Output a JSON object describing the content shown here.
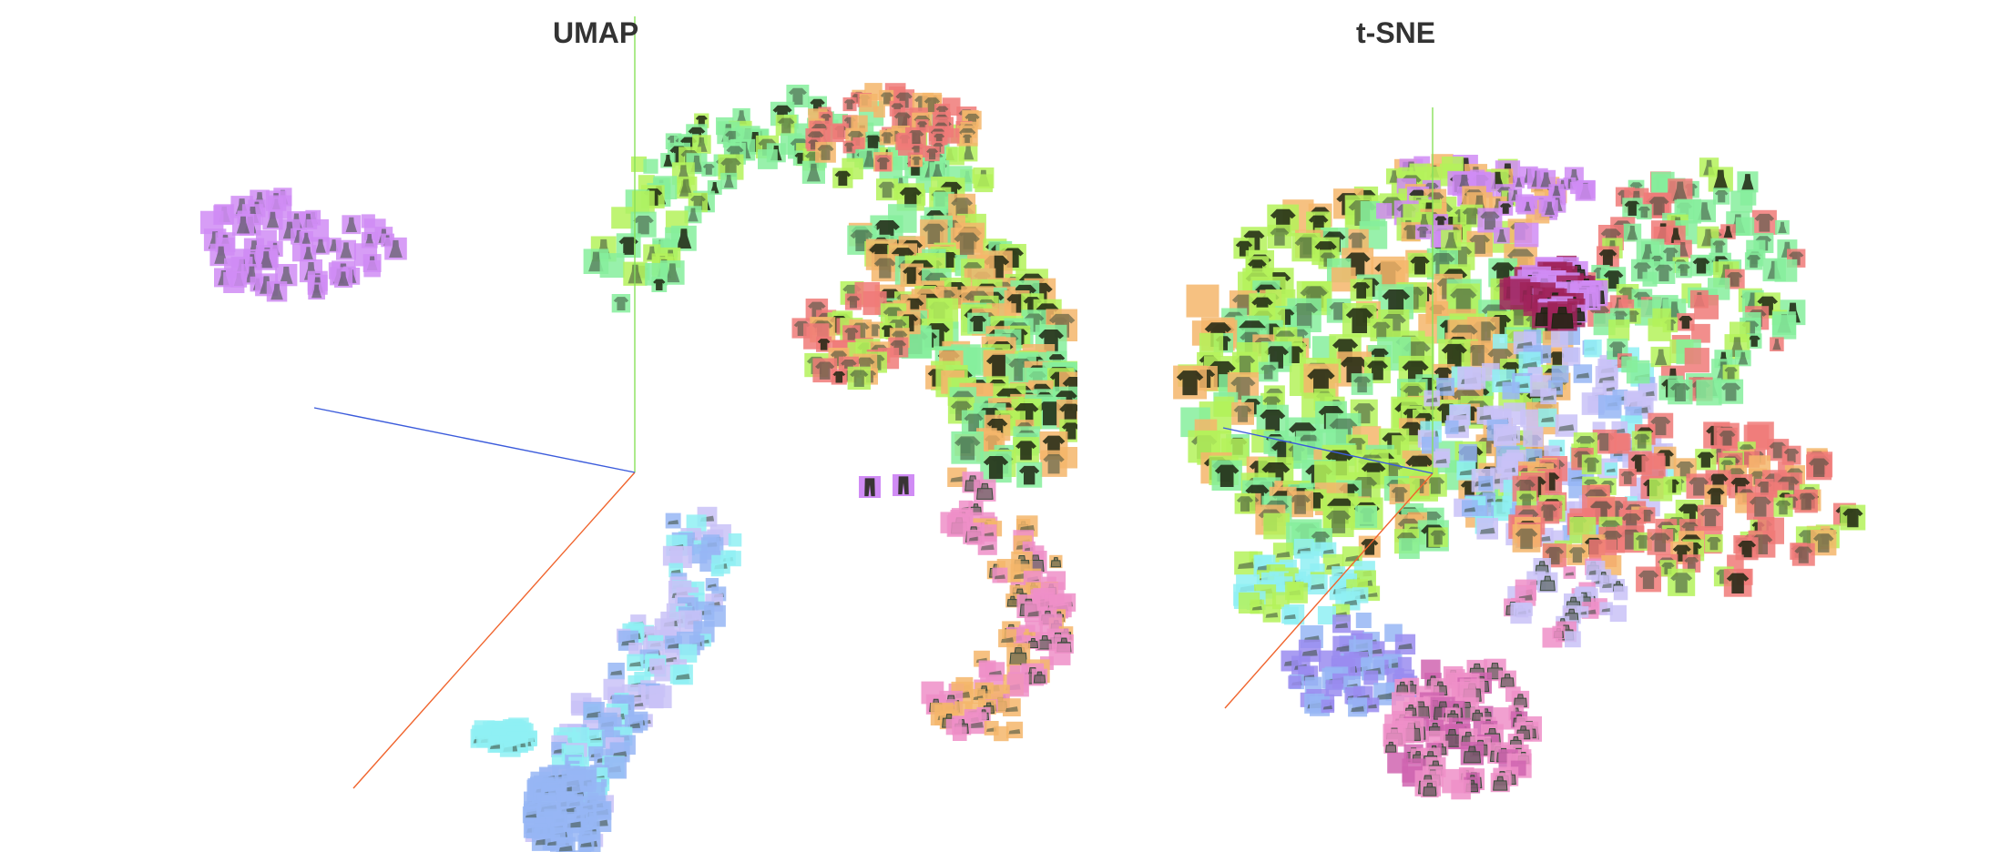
{
  "panels": [
    {
      "id": "umap",
      "title": "UMAP",
      "axis_colors": {
        "x": "#f0642d",
        "y": "#88e05a",
        "z": "#3b5bdb"
      }
    },
    {
      "id": "tsne",
      "title": "t-SNE",
      "axis_colors": {
        "x": "#f0642d",
        "y": "#88e05a",
        "z": "#3b5bdb"
      }
    }
  ],
  "point_icons": [
    "dress",
    "shirt",
    "pullover",
    "coat",
    "trouser",
    "bag"
  ],
  "palette": {
    "purple": "#d08cf5",
    "green": "#86ef9c",
    "lime": "#b4f25a",
    "orange": "#f5b66b",
    "red": "#f07a78",
    "pink": "#ee8fc8",
    "cyan": "#8ff0f3",
    "blue": "#97b6f5",
    "lavender": "#c9c2f7",
    "violet": "#9a8cf0"
  }
}
